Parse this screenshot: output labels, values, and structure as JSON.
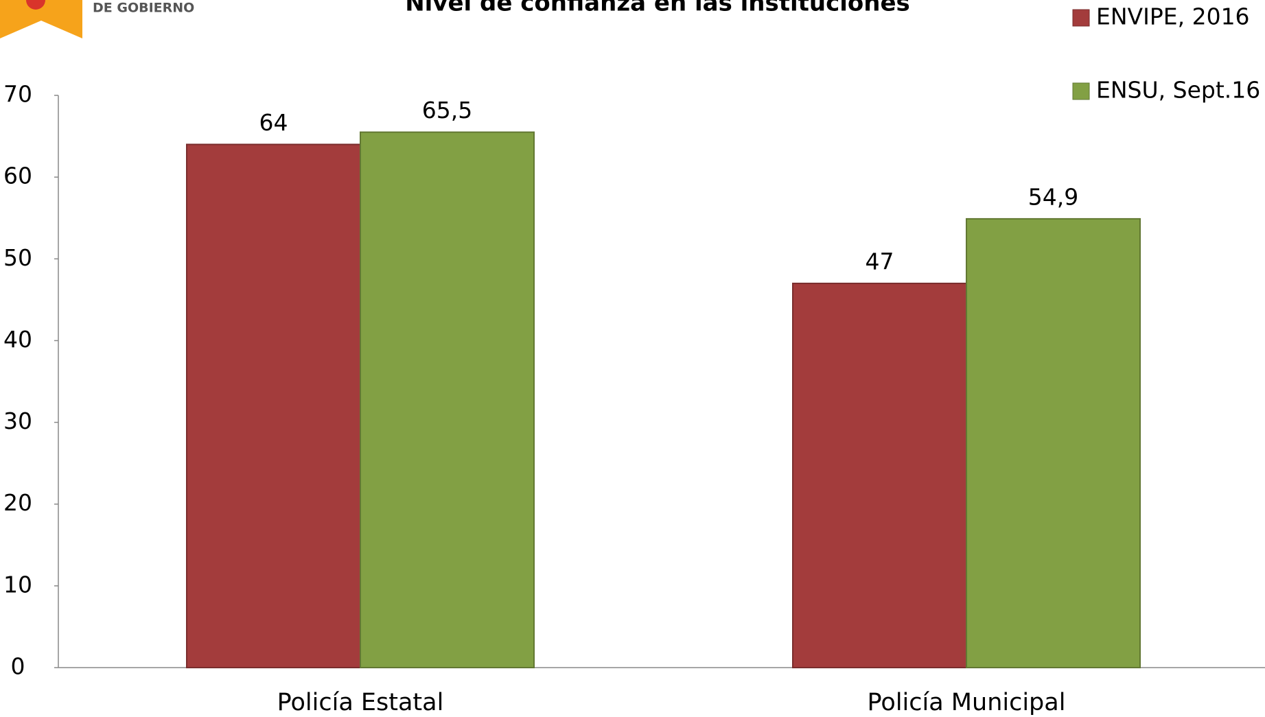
{
  "logo_text": "DE GOBIERNO",
  "chart_data": {
    "type": "bar",
    "title": "Nivel de confianza en las instituciones",
    "categories": [
      "Policía Estatal",
      "Policía Municipal"
    ],
    "series": [
      {
        "name": "ENVIPE, 2016",
        "color": "#a33c3c",
        "values": [
          64,
          47
        ],
        "value_labels": [
          "64",
          "47"
        ]
      },
      {
        "name": "ENSU, Sept.16",
        "color": "#82a044",
        "values": [
          65.5,
          54.9
        ],
        "value_labels": [
          "65,5",
          "54,9"
        ]
      }
    ],
    "ylim": [
      0,
      70
    ],
    "yticks": [
      0,
      10,
      20,
      30,
      40,
      50,
      60,
      70
    ],
    "grid": false,
    "legend": "top-right"
  }
}
